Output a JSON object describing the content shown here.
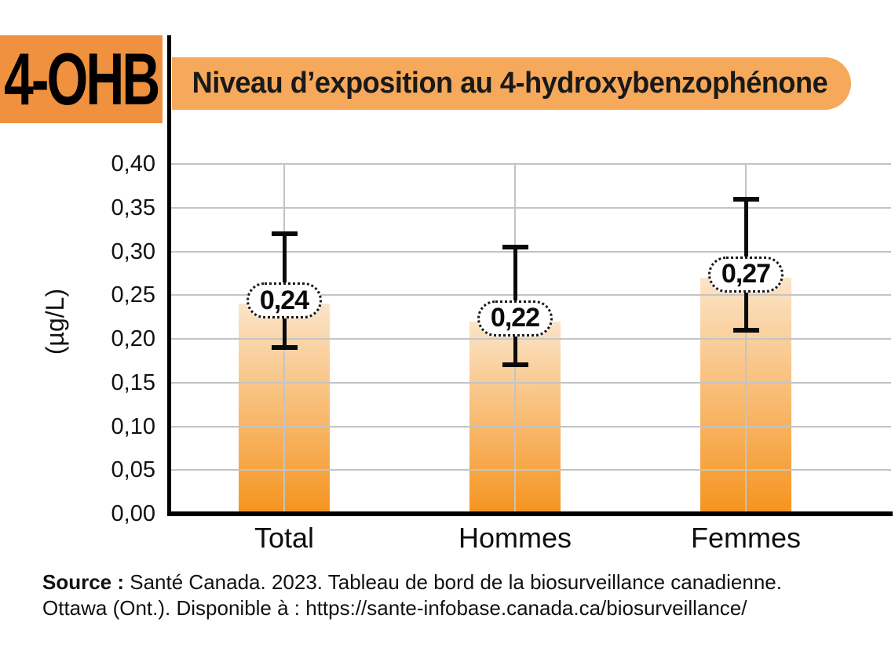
{
  "header": {
    "tag_label": "4-OHB",
    "banner_title": "Niveau d’exposition au 4-hydroxybenzophénone"
  },
  "chart_data": {
    "type": "bar",
    "title": "Niveau d’exposition au 4-hydroxybenzophénone",
    "ylabel": "(µg/L)",
    "ylim": [
      0,
      0.4
    ],
    "ytick_step": 0.05,
    "ytick_labels": [
      "0,00",
      "0,05",
      "0,10",
      "0,15",
      "0,20",
      "0,25",
      "0,30",
      "0,35",
      "0,40"
    ],
    "grid": true,
    "categories": [
      "Total",
      "Hommes",
      "Femmes"
    ],
    "values": [
      0.24,
      0.22,
      0.27
    ],
    "value_labels": [
      "0,24",
      "0,22",
      "0,27"
    ],
    "error_low": [
      0.19,
      0.17,
      0.21
    ],
    "error_high": [
      0.32,
      0.305,
      0.36
    ],
    "bar_color_top": "#FBE4C8",
    "bar_color_bottom": "#F5941F"
  },
  "colors": {
    "tag_bg": "#F0913F",
    "banner_bg": "#F6A95B",
    "grid": "#C4C4C4",
    "axis": "#000000"
  },
  "source": {
    "bold_label": "Source :",
    "line1_rest": " Santé Canada. 2023. Tableau de bord de la biosurveillance canadienne.",
    "line2": "Ottawa (Ont.). Disponible à : https://sante-infobase.canada.ca/biosurveillance/"
  }
}
